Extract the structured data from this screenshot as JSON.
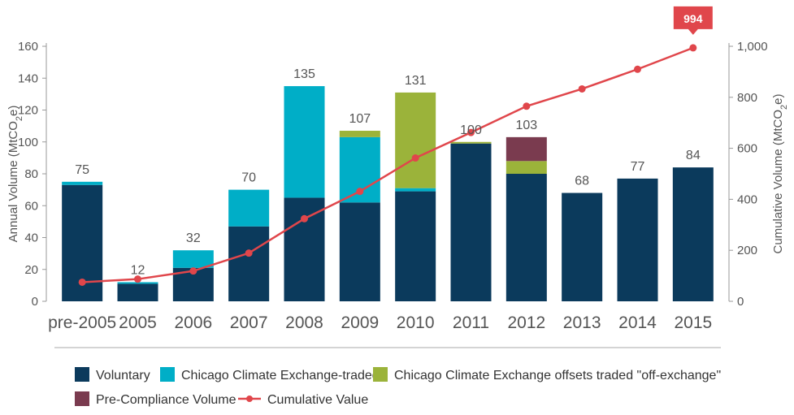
{
  "chart_data": {
    "type": "bar",
    "stacked": true,
    "categories": [
      "pre-2005",
      "2005",
      "2006",
      "2007",
      "2008",
      "2009",
      "2010",
      "2011",
      "2012",
      "2013",
      "2014",
      "2015"
    ],
    "series": [
      {
        "name": "Voluntary",
        "color": "#0b3a5c",
        "values": [
          73,
          11,
          21,
          47,
          65,
          62,
          69,
          99,
          80,
          68,
          77,
          84
        ]
      },
      {
        "name": "Chicago Climate Exchange-traded",
        "color": "#00aec7",
        "values": [
          2,
          1,
          11,
          23,
          70,
          41,
          2,
          0,
          0,
          0,
          0,
          0
        ]
      },
      {
        "name": "Chicago Climate Exchange offsets traded \"off-exchange\"",
        "color": "#9bb33a",
        "values": [
          0,
          0,
          0,
          0,
          0,
          4,
          60,
          1,
          8,
          0,
          0,
          0
        ]
      },
      {
        "name": "Pre-Compliance Volume",
        "color": "#7a3b4f",
        "values": [
          0,
          0,
          0,
          0,
          0,
          0,
          0,
          0,
          15,
          0,
          0,
          0
        ]
      }
    ],
    "totals": [
      "75",
      "12",
      "32",
      "70",
      "135",
      "107",
      "131",
      "100",
      "103",
      "68",
      "77",
      "84"
    ],
    "line": {
      "name": "Cumulative Value",
      "color": "#e0464b",
      "values": [
        75,
        87,
        119,
        189,
        324,
        431,
        562,
        662,
        765,
        833,
        910,
        994
      ]
    },
    "callout": "994",
    "y_left": {
      "title": "Annual Volume (MtCO2e)",
      "range": [
        0,
        160
      ],
      "ticks": [
        "0",
        "20",
        "40",
        "60",
        "80",
        "100",
        "120",
        "140",
        "160"
      ]
    },
    "y_right": {
      "title": "Cumulative Volume (MtCO2e)",
      "range": [
        0,
        1000
      ],
      "ticks": [
        "0",
        "200",
        "400",
        "600",
        "800",
        "1,000"
      ]
    },
    "legend_position": "bottom"
  }
}
